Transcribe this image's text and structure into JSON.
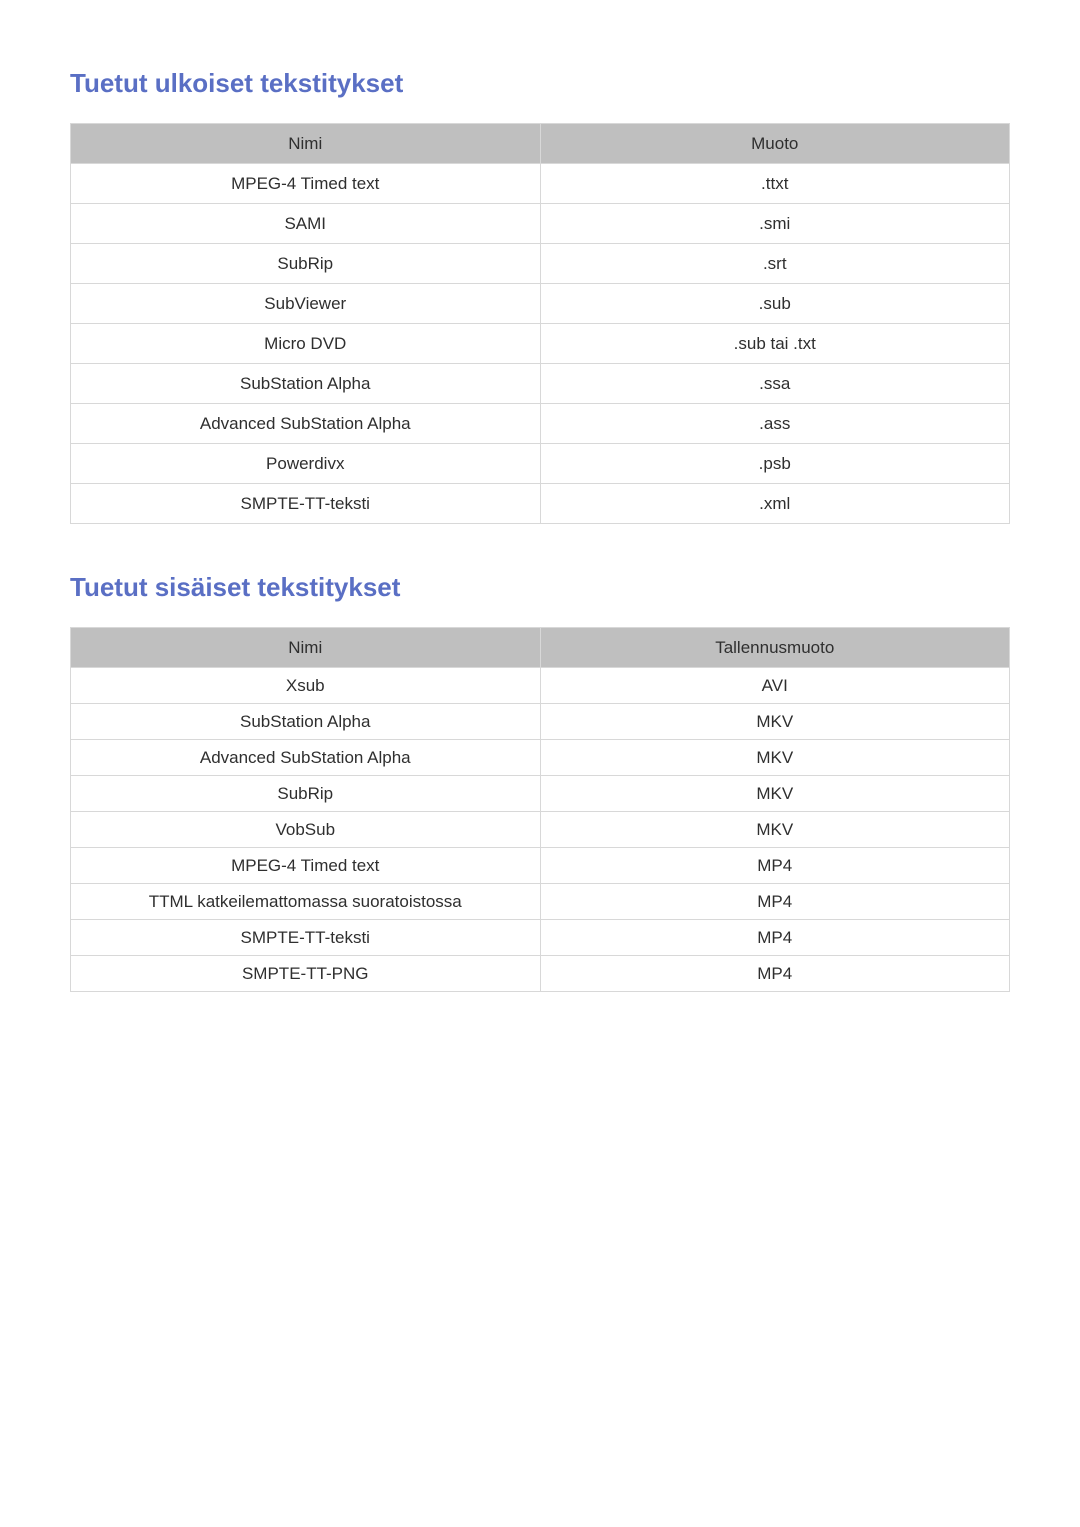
{
  "colors": {
    "title": "#5a6fc4",
    "header_bg": "#bfbfbf",
    "border": "#d8d8d8",
    "text": "#2f2f2f",
    "page_bg": "#ffffff"
  },
  "typography": {
    "title_fontsize": 26,
    "cell_fontsize": 17,
    "title_weight": 700
  },
  "sections": {
    "external": {
      "title": "Tuetut ulkoiset tekstitykset",
      "columns": [
        "Nimi",
        "Muoto"
      ],
      "rows": [
        [
          "MPEG-4 Timed text",
          ".ttxt"
        ],
        [
          "SAMI",
          ".smi"
        ],
        [
          "SubRip",
          ".srt"
        ],
        [
          "SubViewer",
          ".sub"
        ],
        [
          "Micro DVD",
          ".sub tai .txt"
        ],
        [
          "SubStation Alpha",
          ".ssa"
        ],
        [
          "Advanced SubStation Alpha",
          ".ass"
        ],
        [
          "Powerdivx",
          ".psb"
        ],
        [
          "SMPTE-TT-teksti",
          ".xml"
        ]
      ]
    },
    "internal": {
      "title": "Tuetut sisäiset tekstitykset",
      "columns": [
        "Nimi",
        "Tallennusmuoto"
      ],
      "rows": [
        [
          "Xsub",
          "AVI"
        ],
        [
          "SubStation Alpha",
          "MKV"
        ],
        [
          "Advanced SubStation Alpha",
          "MKV"
        ],
        [
          "SubRip",
          "MKV"
        ],
        [
          "VobSub",
          "MKV"
        ],
        [
          "MPEG-4 Timed text",
          "MP4"
        ],
        [
          "TTML katkeilemattomassa suoratoistossa",
          "MP4"
        ],
        [
          "SMPTE-TT-teksti",
          "MP4"
        ],
        [
          "SMPTE-TT-PNG",
          "MP4"
        ]
      ]
    }
  }
}
